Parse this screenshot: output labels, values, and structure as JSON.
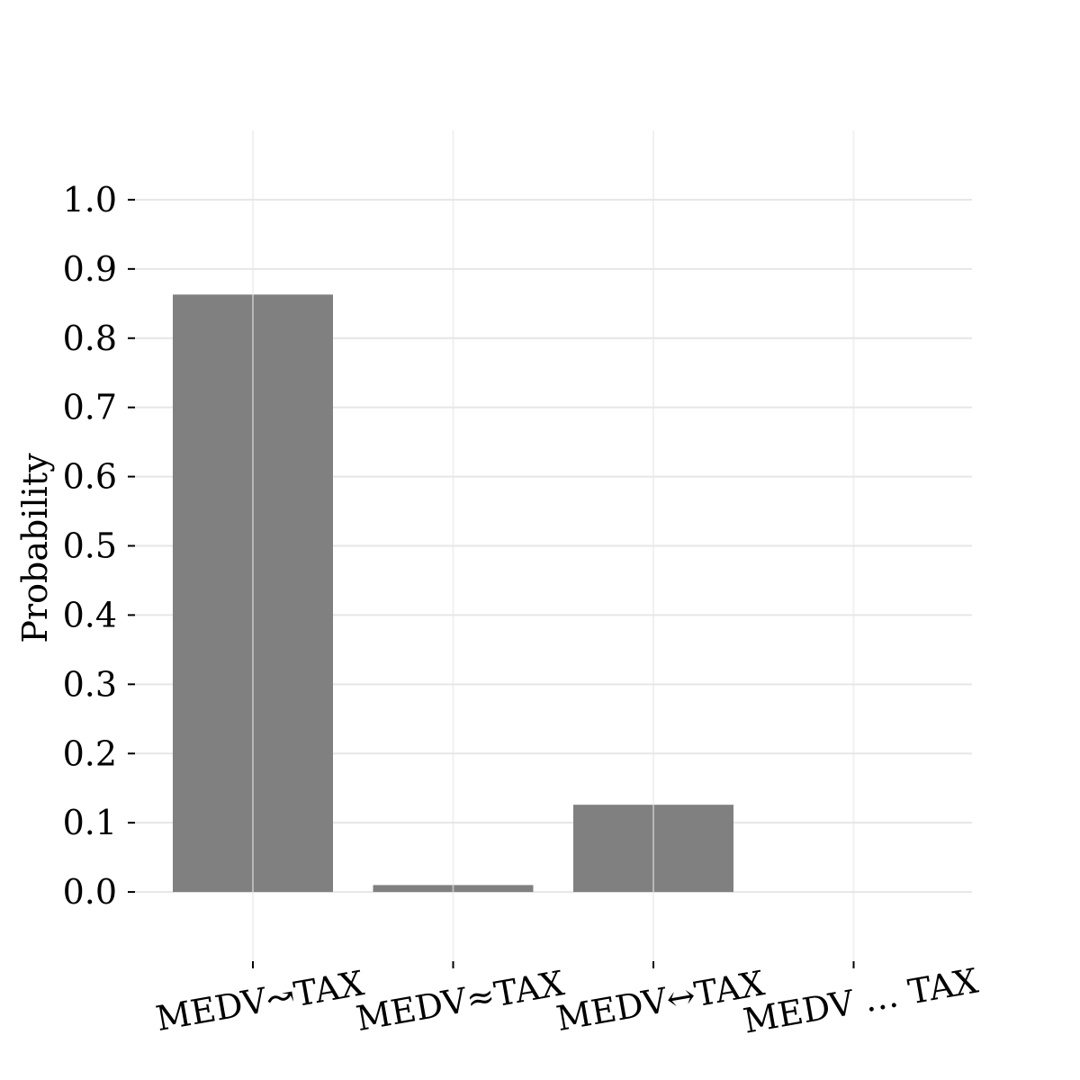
{
  "chart_data": {
    "type": "bar",
    "categories": [
      "MEDV↝TAX",
      "MEDV≈TAX",
      "MEDV↔TAX",
      "MEDV … TAX"
    ],
    "values": [
      0.863,
      0.01,
      0.126,
      0.0
    ],
    "ylabel": "Probability",
    "xlabel": "",
    "title": "",
    "ylim": [
      -0.1,
      1.1
    ],
    "yticks": [
      0.0,
      0.1,
      0.2,
      0.3,
      0.4,
      0.5,
      0.6,
      0.7,
      0.8,
      0.9,
      1.0
    ],
    "ytick_labels": [
      "0.0",
      "0.1",
      "0.2",
      "0.3",
      "0.4",
      "0.5",
      "0.6",
      "0.7",
      "0.8",
      "0.9",
      "1.0"
    ],
    "grid": true,
    "bar_color": "#808080",
    "grid_color": "#e6e6e6"
  }
}
